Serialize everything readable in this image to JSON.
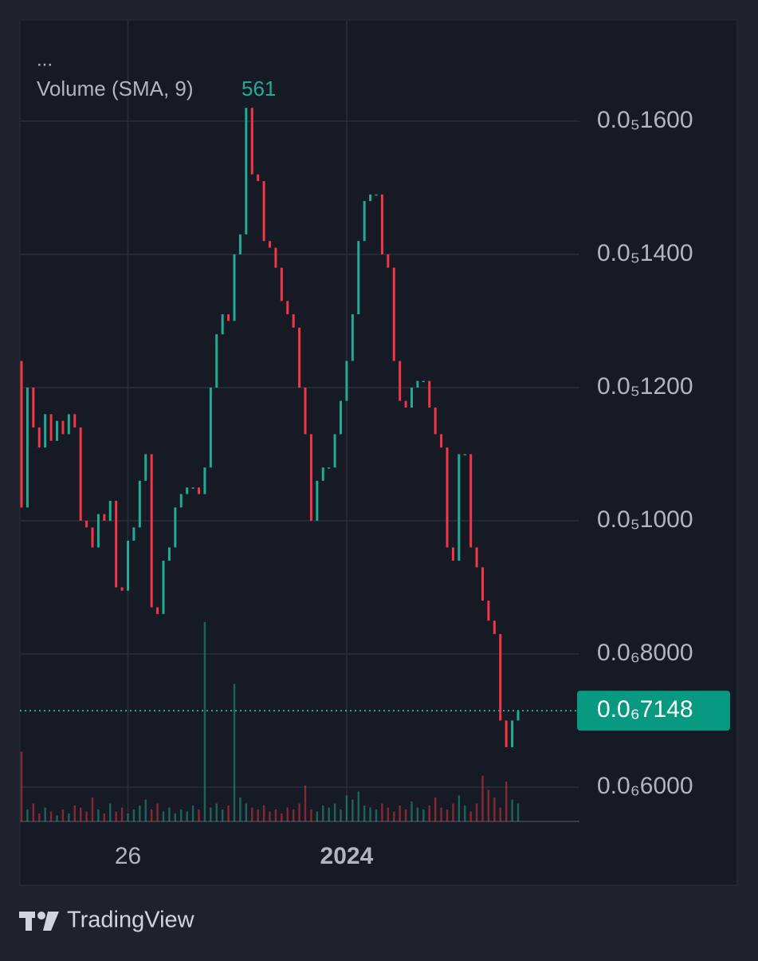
{
  "chart_data": {
    "type": "candlestick",
    "legend_menu": "...",
    "indicator": {
      "name": "Volume (SMA, 9)",
      "value": 561
    },
    "categories": [
      null,
      null,
      null,
      null,
      null,
      null,
      null,
      null,
      null,
      null,
      null,
      null,
      null,
      null,
      null,
      null,
      null,
      null,
      "26",
      null,
      null,
      null,
      null,
      null,
      null,
      null,
      null,
      null,
      null,
      null,
      null,
      null,
      null,
      null,
      null,
      null,
      null,
      null,
      null,
      null,
      null,
      null,
      null,
      null,
      null,
      null,
      null,
      null,
      null,
      null,
      null,
      null,
      null,
      null,
      null,
      "2024",
      null,
      null,
      null,
      null,
      null,
      null,
      null,
      null,
      null,
      null,
      null,
      null,
      null,
      null,
      null,
      null,
      null,
      null,
      null,
      null,
      null,
      null,
      null,
      null,
      null,
      null,
      null,
      null,
      null
    ],
    "open": [
      1.24e-06,
      1.02e-06,
      1.2e-06,
      1.14e-06,
      1.11e-06,
      1.16e-06,
      1.12e-06,
      1.15e-06,
      1.13e-06,
      1.16e-06,
      1.14e-06,
      1e-06,
      9.9e-07,
      9.6e-07,
      1.01e-06,
      1e-06,
      1.03e-06,
      9e-07,
      8.95e-07,
      9.7e-07,
      9.9e-07,
      1.06e-06,
      1.1e-06,
      8.7e-07,
      8.6e-07,
      9.4e-07,
      9.6e-07,
      1.02e-06,
      1.04e-06,
      1.05e-06,
      1.05e-06,
      1.04e-06,
      1.08e-06,
      1.2e-06,
      1.28e-06,
      1.31e-06,
      1.3e-06,
      1.4e-06,
      1.43e-06,
      1.62e-06,
      1.52e-06,
      1.51e-06,
      1.42e-06,
      1.41e-06,
      1.38e-06,
      1.33e-06,
      1.31e-06,
      1.29e-06,
      1.2e-06,
      1.13e-06,
      1e-06,
      1.06e-06,
      1.08e-06,
      1.08e-06,
      1.13e-06,
      1.18e-06,
      1.24e-06,
      1.31e-06,
      1.42e-06,
      1.48e-06,
      1.49e-06,
      1.49e-06,
      1.4e-06,
      1.38e-06,
      1.24e-06,
      1.18e-06,
      1.17e-06,
      1.2e-06,
      1.21e-06,
      1.21e-06,
      1.17e-06,
      1.13e-06,
      1.11e-06,
      9.6e-07,
      9.4e-07,
      1.1e-06,
      1.1e-06,
      9.6e-07,
      9.3e-07,
      8.8e-07,
      8.5e-07,
      8.3e-07,
      7e-07,
      6.6e-07,
      7e-07
    ],
    "close": [
      1.02e-06,
      1.2e-06,
      1.14e-06,
      1.11e-06,
      1.16e-06,
      1.12e-06,
      1.15e-06,
      1.13e-06,
      1.16e-06,
      1.14e-06,
      1e-06,
      9.9e-07,
      9.6e-07,
      1.01e-06,
      1e-06,
      1.03e-06,
      9e-07,
      8.95e-07,
      9.7e-07,
      9.9e-07,
      1.06e-06,
      1.1e-06,
      8.7e-07,
      8.6e-07,
      9.4e-07,
      9.6e-07,
      1.02e-06,
      1.04e-06,
      1.05e-06,
      1.05e-06,
      1.04e-06,
      1.08e-06,
      1.2e-06,
      1.28e-06,
      1.31e-06,
      1.3e-06,
      1.4e-06,
      1.43e-06,
      1.62e-06,
      1.52e-06,
      1.51e-06,
      1.42e-06,
      1.41e-06,
      1.38e-06,
      1.33e-06,
      1.31e-06,
      1.29e-06,
      1.2e-06,
      1.13e-06,
      1e-06,
      1.06e-06,
      1.08e-06,
      1.08e-06,
      1.13e-06,
      1.18e-06,
      1.24e-06,
      1.31e-06,
      1.42e-06,
      1.48e-06,
      1.49e-06,
      1.49e-06,
      1.4e-06,
      1.38e-06,
      1.24e-06,
      1.18e-06,
      1.17e-06,
      1.2e-06,
      1.21e-06,
      1.21e-06,
      1.17e-06,
      1.13e-06,
      1.11e-06,
      9.6e-07,
      9.4e-07,
      1.1e-06,
      1.1e-06,
      9.6e-07,
      9.3e-07,
      8.8e-07,
      8.5e-07,
      8.3e-07,
      7e-07,
      6.6e-07,
      7e-07,
      7.148e-07
    ],
    "volume": [
      350,
      60,
      90,
      40,
      70,
      50,
      30,
      60,
      40,
      80,
      70,
      50,
      120,
      60,
      40,
      90,
      50,
      70,
      40,
      60,
      80,
      110,
      60,
      90,
      50,
      70,
      40,
      60,
      50,
      80,
      60,
      1000,
      70,
      90,
      60,
      80,
      690,
      120,
      90,
      70,
      60,
      80,
      50,
      60,
      40,
      70,
      60,
      90,
      180,
      60,
      50,
      80,
      70,
      90,
      60,
      130,
      110,
      150,
      80,
      70,
      60,
      90,
      70,
      50,
      80,
      60,
      100,
      70,
      60,
      80,
      120,
      70,
      60,
      90,
      130,
      80,
      50,
      90,
      230,
      160,
      120,
      70,
      200,
      110,
      90
    ],
    "up_color": "#22ab94",
    "down_color": "#f23645",
    "ylim": [
      5.485e-07,
      1.752e-06
    ],
    "yticks": [
      {
        "value": 6e-07,
        "label": "0.0₆6000"
      },
      {
        "value": 8e-07,
        "label": "0.0₆8000"
      },
      {
        "value": 1e-06,
        "label": "0.0₅1000"
      },
      {
        "value": 1.2e-06,
        "label": "0.0₅1200"
      },
      {
        "value": 1.4e-06,
        "label": "0.0₅1400"
      },
      {
        "value": 1.6e-06,
        "label": "0.0₅1600"
      }
    ],
    "y2lim": [
      0,
      1000
    ],
    "last_price": {
      "value": 7.148e-07,
      "label": "0.0₆7148"
    },
    "grid": true
  },
  "brand": "TradingView"
}
